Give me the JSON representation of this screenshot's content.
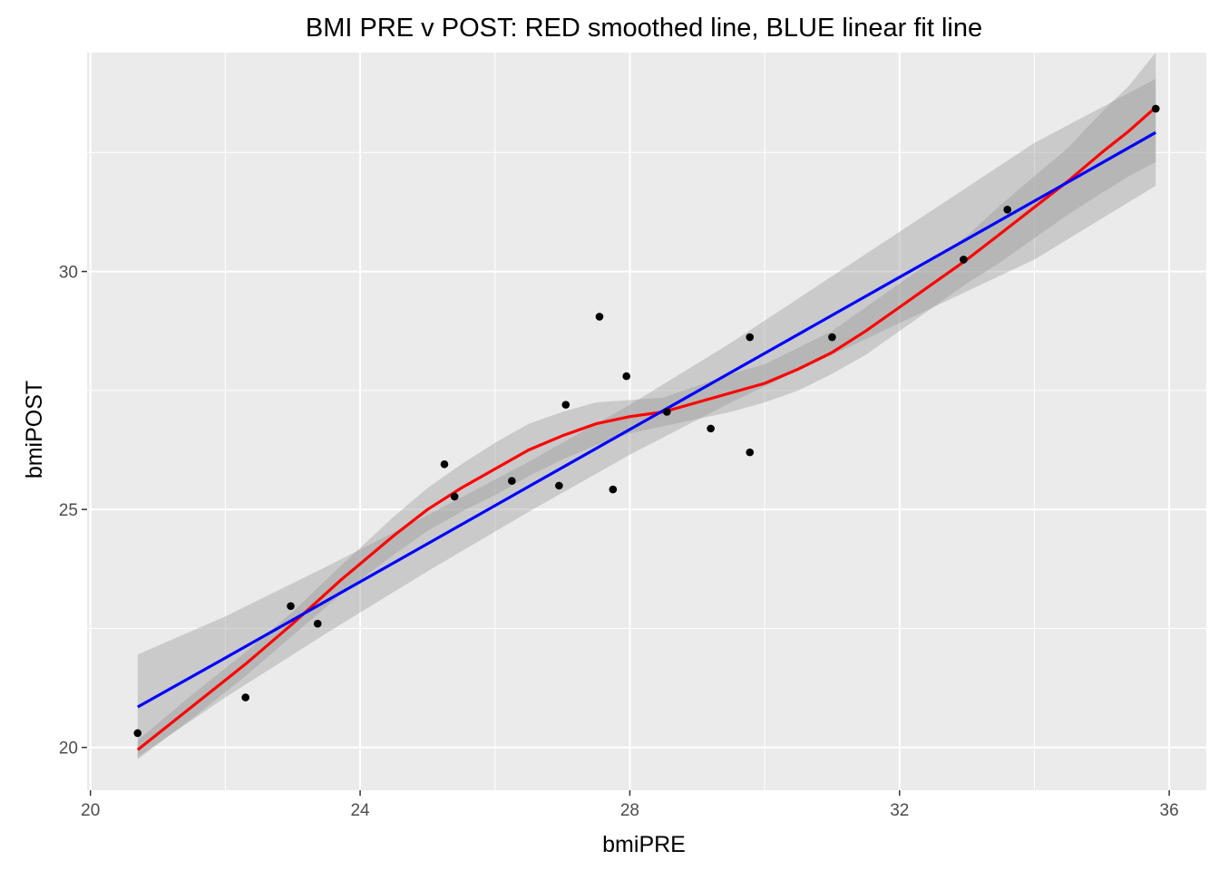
{
  "chart_data": {
    "type": "scatter",
    "title": "BMI PRE v POST: RED smoothed line, BLUE linear fit line",
    "xlabel": "bmiPRE",
    "ylabel": "bmiPOST",
    "xlim": [
      19.95,
      36.55
    ],
    "ylim": [
      19.1,
      34.6
    ],
    "x_ticks": [
      20,
      24,
      28,
      32,
      36
    ],
    "x_tick_labels": [
      "20",
      "24",
      "28",
      "32",
      "36"
    ],
    "x_minor_ticks": [
      22,
      26,
      30,
      34
    ],
    "y_ticks": [
      20,
      25,
      30
    ],
    "y_tick_labels": [
      "20",
      "25",
      "30"
    ],
    "y_minor_ticks": [
      22.5,
      27.5,
      32.5
    ],
    "grid": true,
    "legend": "none",
    "colors": {
      "panel_background": "#ebebeb",
      "grid": "#ffffff",
      "points": "#000000",
      "smooth_line": "#ff0000",
      "linear_fit": "#0000ff",
      "confidence_band": "#999999"
    },
    "points": [
      {
        "x": 20.7,
        "y": 20.3
      },
      {
        "x": 22.3,
        "y": 21.05
      },
      {
        "x": 22.97,
        "y": 22.97
      },
      {
        "x": 23.37,
        "y": 22.6
      },
      {
        "x": 25.25,
        "y": 25.95
      },
      {
        "x": 25.4,
        "y": 25.27
      },
      {
        "x": 26.25,
        "y": 25.6
      },
      {
        "x": 26.95,
        "y": 25.5
      },
      {
        "x": 27.05,
        "y": 27.2
      },
      {
        "x": 27.55,
        "y": 29.05
      },
      {
        "x": 27.75,
        "y": 25.42
      },
      {
        "x": 27.95,
        "y": 27.8
      },
      {
        "x": 28.55,
        "y": 27.05
      },
      {
        "x": 29.2,
        "y": 26.7
      },
      {
        "x": 29.78,
        "y": 28.62
      },
      {
        "x": 29.78,
        "y": 26.2
      },
      {
        "x": 31.0,
        "y": 28.62
      },
      {
        "x": 32.95,
        "y": 30.25
      },
      {
        "x": 33.6,
        "y": 31.3
      },
      {
        "x": 35.8,
        "y": 33.42
      }
    ],
    "series": [
      {
        "kind": "loess",
        "x": [
          20.7,
          21.5,
          22.3,
          23.0,
          23.7,
          24.5,
          25.0,
          25.5,
          26.0,
          26.5,
          27.0,
          27.5,
          28.0,
          28.5,
          29.0,
          29.5,
          30.0,
          30.5,
          31.0,
          31.5,
          32.0,
          32.5,
          33.0,
          33.5,
          34.0,
          34.5,
          35.0,
          35.4,
          35.8
        ],
        "y": [
          19.95,
          20.85,
          21.75,
          22.6,
          23.5,
          24.45,
          25.0,
          25.45,
          25.85,
          26.25,
          26.55,
          26.8,
          26.95,
          27.05,
          27.25,
          27.45,
          27.65,
          27.95,
          28.3,
          28.75,
          29.25,
          29.75,
          30.25,
          30.8,
          31.35,
          31.9,
          32.5,
          32.95,
          33.45
        ],
        "band_lower": [
          19.75,
          20.6,
          21.5,
          22.35,
          23.2,
          24.05,
          24.55,
          24.95,
          25.3,
          25.7,
          26.05,
          26.35,
          26.6,
          26.75,
          26.9,
          27.05,
          27.25,
          27.5,
          27.85,
          28.25,
          28.75,
          29.25,
          29.75,
          30.2,
          30.7,
          31.2,
          31.65,
          32.0,
          32.3
        ],
        "band_upper": [
          20.15,
          21.1,
          22.0,
          22.85,
          23.8,
          24.85,
          25.45,
          25.95,
          26.4,
          26.8,
          27.05,
          27.25,
          27.3,
          27.35,
          27.6,
          27.85,
          28.05,
          28.4,
          28.75,
          29.25,
          29.75,
          30.25,
          30.75,
          31.4,
          32.0,
          32.6,
          33.35,
          33.9,
          34.6
        ]
      },
      {
        "kind": "linear",
        "x": [
          20.7,
          22.0,
          23.5,
          25.0,
          26.5,
          28.0,
          29.5,
          31.0,
          32.5,
          34.0,
          35.8
        ],
        "y": [
          20.85,
          21.88,
          23.08,
          24.28,
          25.48,
          26.68,
          27.88,
          29.08,
          30.28,
          31.48,
          32.92
        ],
        "band_lower": [
          19.8,
          21.05,
          22.4,
          23.7,
          24.95,
          26.15,
          27.25,
          28.25,
          29.25,
          30.25,
          31.8
        ],
        "band_upper": [
          21.95,
          22.75,
          23.8,
          24.88,
          26.0,
          27.2,
          28.5,
          29.9,
          31.3,
          32.7,
          34.05
        ]
      }
    ]
  }
}
